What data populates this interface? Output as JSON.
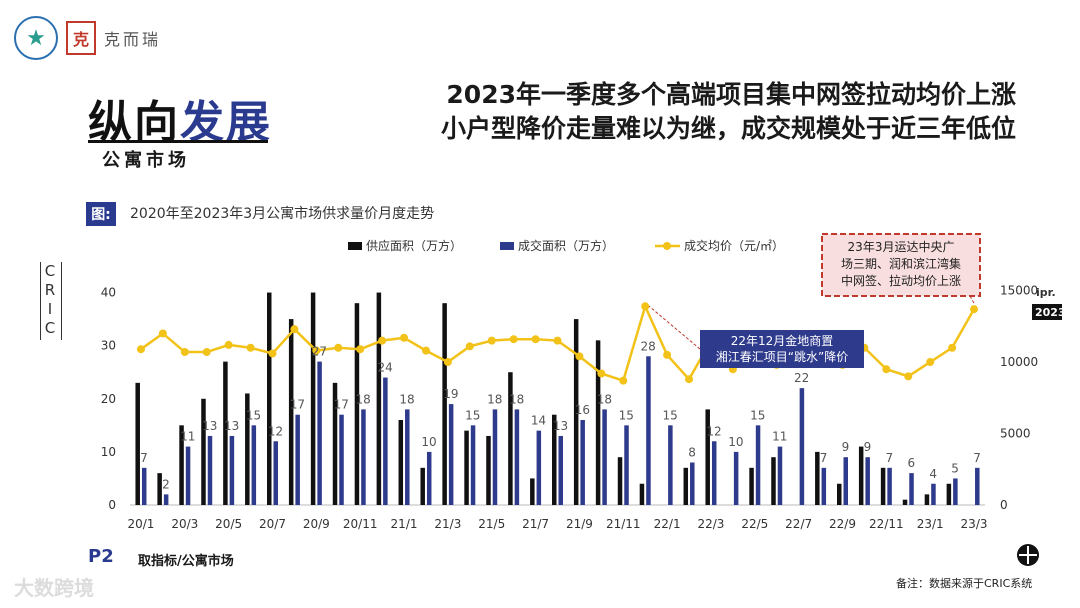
{
  "header": {
    "brand_name": "克而瑞",
    "section_title_part1": "纵向",
    "section_title_part2": "发展",
    "section_subtitle": "公寓市场",
    "headline_line1": "2023年一季度多个高端项目集中网签拉动均价上涨",
    "headline_line2": "小户型降价走量难以为继，成交规模处于近三年低位"
  },
  "figure": {
    "tag": "图:",
    "caption": "2020年至2023年3月公寓市场供求量价月度走势",
    "side_label": [
      "C",
      "R",
      "I",
      "C"
    ]
  },
  "footer": {
    "page": "P2",
    "label": "取指标/公寓市场",
    "note": "备注：数据来源于CRIC系统",
    "watermark": "大数跨境"
  },
  "colors": {
    "supply": "#111111",
    "deal_area": "#2e3a8c",
    "price": "#f2c218",
    "callout_border": "#c0392b"
  },
  "chart_data": {
    "type": "bar",
    "months": [
      "20/1",
      "20/2",
      "20/3",
      "20/4",
      "20/5",
      "20/6",
      "20/7",
      "20/8",
      "20/9",
      "20/10",
      "20/11",
      "20/12",
      "21/1",
      "21/2",
      "21/3",
      "21/4",
      "21/5",
      "21/6",
      "21/7",
      "21/8",
      "21/9",
      "21/10",
      "21/11",
      "21/12",
      "22/1",
      "22/2",
      "22/3",
      "22/4",
      "22/5",
      "22/6",
      "22/7",
      "22/8",
      "22/9",
      "22/10",
      "22/11",
      "22/12",
      "23/1",
      "23/2",
      "23/3"
    ],
    "x_tick_labels": [
      "20/1",
      "20/3",
      "20/5",
      "20/7",
      "20/9",
      "20/11",
      "21/1",
      "21/3",
      "21/5",
      "21/7",
      "21/9",
      "21/11",
      "22/1",
      "22/3",
      "22/5",
      "22/7",
      "22/9",
      "22/11",
      "23/1",
      "23/3"
    ],
    "series": [
      {
        "name": "供应面积（万方）",
        "axis": "left",
        "values": [
          23,
          6,
          15,
          20,
          27,
          21,
          40,
          35,
          40,
          23,
          38,
          40,
          16,
          7,
          38,
          14,
          13,
          25,
          5,
          17,
          35,
          31,
          9,
          4,
          0,
          7,
          18,
          0,
          7,
          9,
          0,
          10,
          4,
          11,
          7,
          1,
          2,
          4,
          0
        ]
      },
      {
        "name": "成交面积（万方）",
        "axis": "left",
        "values": [
          7,
          2,
          11,
          13,
          13,
          15,
          12,
          17,
          27,
          17,
          18,
          24,
          18,
          10,
          19,
          15,
          18,
          18,
          14,
          13,
          16,
          18,
          15,
          28,
          15,
          8,
          12,
          10,
          15,
          11,
          22,
          7,
          9,
          9,
          7,
          6,
          4,
          5,
          7
        ]
      },
      {
        "name": "成交均价（元/㎡）",
        "axis": "right",
        "type": "line",
        "values": [
          10900,
          12000,
          10700,
          10700,
          11200,
          11000,
          10600,
          12300,
          10800,
          11000,
          10900,
          11500,
          11700,
          10800,
          10000,
          11100,
          11500,
          11600,
          11600,
          11500,
          10400,
          9200,
          8700,
          13900,
          10500,
          8800,
          11500,
          9500,
          10800,
          9800,
          11300,
          11000,
          9800,
          11000,
          9500,
          9000,
          10000,
          11000,
          13700
        ]
      }
    ],
    "bar_data_labels": [
      "7",
      "2",
      "11",
      "13",
      "13",
      "15",
      "12",
      "17",
      "27",
      "17",
      "18",
      "24",
      "18",
      "10",
      "19",
      "15",
      "18",
      "18",
      "14",
      "13",
      "16",
      "18",
      "15",
      "28",
      "15",
      "8",
      "12",
      "10",
      "15",
      "11",
      "22",
      "7",
      "9",
      "9",
      "7",
      "6",
      "4",
      "5",
      "7"
    ],
    "left_axis": {
      "ticks": [
        "0",
        "10",
        "20",
        "30",
        "40"
      ],
      "ylim": [
        0,
        45
      ]
    },
    "right_axis": {
      "ticks": [
        "0",
        "5000",
        "10000",
        "15000"
      ],
      "ylim": [
        0,
        17000
      ],
      "unit_badge_top": "ipr.",
      "unit_badge_bottom": "2023"
    },
    "legend_position": "top",
    "annotations": [
      {
        "text": "22年12月金地商置湘江春汇项目“跳水”降价",
        "month": "22/2"
      },
      {
        "text": "23年3月运达中央广场三期、润和滨江湾集中网签、拉动均价上涨",
        "month": "22/12"
      }
    ]
  }
}
